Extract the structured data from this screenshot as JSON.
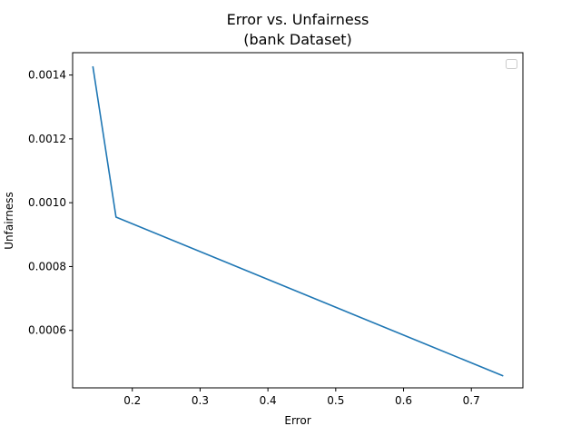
{
  "chart_data": {
    "type": "line",
    "title": "Error vs. Unfairness",
    "subtitle": "(bank Dataset)",
    "xlabel": "Error",
    "ylabel": "Unfairness",
    "xlim": [
      0.112,
      0.776
    ],
    "ylim": [
      0.00042,
      0.00147
    ],
    "xticks": [
      0.2,
      0.3,
      0.4,
      0.5,
      0.6,
      0.7
    ],
    "xtick_labels": [
      "0.2",
      "0.3",
      "0.4",
      "0.5",
      "0.6",
      "0.7"
    ],
    "yticks": [
      0.0006,
      0.0008,
      0.001,
      0.0012,
      0.0014
    ],
    "ytick_labels": [
      "0.0006",
      "0.0008",
      "0.0010",
      "0.0012",
      "0.0014"
    ],
    "grid": false,
    "legend": {
      "placement": "top-right",
      "entries": []
    },
    "series": [
      {
        "color": "#1f77b4",
        "x": [
          0.142,
          0.176,
          0.746
        ],
        "y": [
          0.001425,
          0.000955,
          0.000458
        ]
      }
    ]
  }
}
